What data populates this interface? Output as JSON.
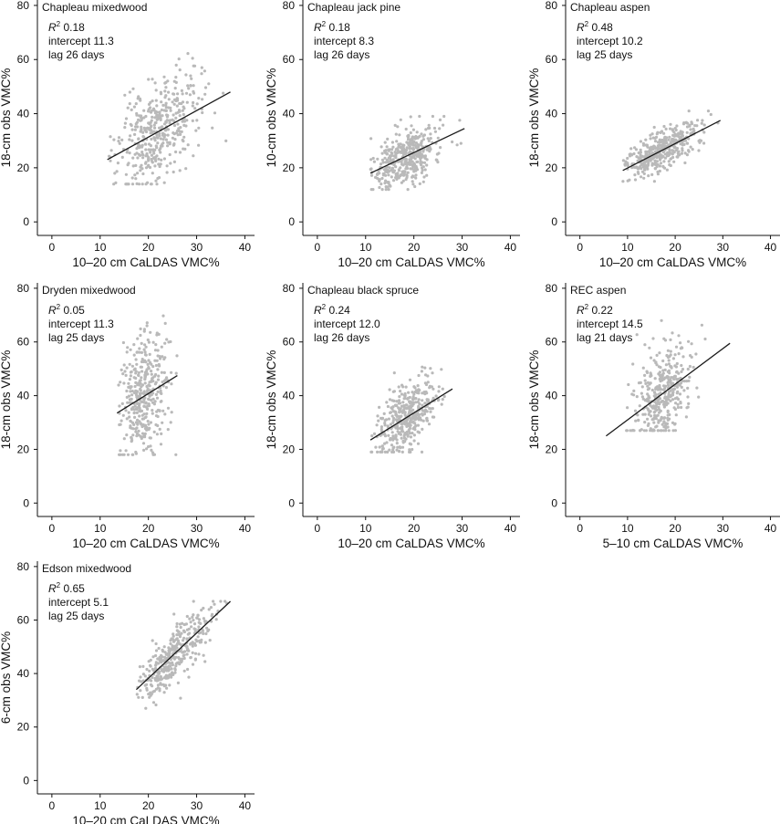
{
  "figure": {
    "colors": {
      "points": "#b9b9b9",
      "fit_line": "#1a1a1a",
      "axes": "#111111"
    }
  },
  "chart_data": [
    {
      "type": "scatter",
      "title": "Chapleau mixedwood",
      "xlabel": "10–20 cm CaLDAS VMC%",
      "ylabel": "18-cm obs VMC%",
      "xlim": [
        -3,
        42
      ],
      "ylim": [
        -5,
        82
      ],
      "xticks": [
        0,
        10,
        20,
        30,
        40
      ],
      "yticks": [
        0,
        20,
        40,
        60,
        80
      ],
      "annotation": {
        "r2_label": "R",
        "r2_sup": "2",
        "r2_value": "0.18",
        "intercept": "intercept 11.3",
        "lag": "lag 26 days"
      },
      "fit_line": [
        [
          11.5,
          23
        ],
        [
          37,
          48
        ]
      ],
      "cloud": {
        "x_min": 11.5,
        "x_max": 37,
        "x_center": 22,
        "x_sd": 4.5,
        "slope": 0.98,
        "intercept": 11.7,
        "noise_sd": 9,
        "y_min": 14,
        "y_max": 74,
        "n": 420,
        "seed": 11
      }
    },
    {
      "type": "scatter",
      "title": "Chapleau jack pine",
      "xlabel": "10–20 cm CaLDAS VMC%",
      "ylabel": "10-cm obs VMC%",
      "xlim": [
        -3,
        42
      ],
      "ylim": [
        -5,
        82
      ],
      "xticks": [
        0,
        10,
        20,
        30,
        40
      ],
      "yticks": [
        0,
        20,
        40,
        60,
        80
      ],
      "annotation": {
        "r2_label": "R",
        "r2_sup": "2",
        "r2_value": "0.18",
        "intercept": "intercept 8.3",
        "lag": "lag 26 days"
      },
      "fit_line": [
        [
          11,
          18
        ],
        [
          30.5,
          34.5
        ]
      ],
      "cloud": {
        "x_min": 11,
        "x_max": 30.5,
        "x_center": 18,
        "x_sd": 3.5,
        "slope": 0.84,
        "intercept": 8.8,
        "noise_sd": 5,
        "y_min": 12,
        "y_max": 39,
        "n": 400,
        "seed": 22
      }
    },
    {
      "type": "scatter",
      "title": "Chapleau aspen",
      "xlabel": "10–20 cm CaLDAS VMC%",
      "ylabel": "18-cm obs VMC%",
      "xlim": [
        -3,
        42
      ],
      "ylim": [
        -5,
        82
      ],
      "xticks": [
        0,
        10,
        20,
        30,
        40
      ],
      "yticks": [
        0,
        20,
        40,
        60,
        80
      ],
      "annotation": {
        "r2_label": "R",
        "r2_sup": "2",
        "r2_value": "0.48",
        "intercept": "intercept 10.2",
        "lag": "lag 25 days"
      },
      "fit_line": [
        [
          9,
          19
        ],
        [
          29.5,
          37.5
        ]
      ],
      "cloud": {
        "x_min": 9,
        "x_max": 29.5,
        "x_center": 17,
        "x_sd": 4,
        "slope": 0.9,
        "intercept": 10.9,
        "noise_sd": 3.5,
        "y_min": 15,
        "y_max": 41,
        "n": 420,
        "seed": 33
      }
    },
    {
      "type": "scatter",
      "title": "Dryden mixedwood",
      "xlabel": "10–20 cm CaLDAS VMC%",
      "ylabel": "18-cm obs VMC%",
      "xlim": [
        -3,
        42
      ],
      "ylim": [
        -5,
        82
      ],
      "xticks": [
        0,
        10,
        20,
        30,
        40
      ],
      "yticks": [
        0,
        20,
        40,
        60,
        80
      ],
      "annotation": {
        "r2_label": "R",
        "r2_sup": "2",
        "r2_value": "0.05",
        "intercept": "intercept 11.3",
        "lag": "lag 25 days"
      },
      "fit_line": [
        [
          13.5,
          33.5
        ],
        [
          26,
          47.5
        ]
      ],
      "cloud": {
        "x_min": 13.5,
        "x_max": 26,
        "x_center": 19,
        "x_sd": 2.6,
        "slope": 1.1,
        "intercept": 18.5,
        "noise_sd": 11,
        "y_min": 18,
        "y_max": 73,
        "n": 380,
        "seed": 44
      }
    },
    {
      "type": "scatter",
      "title": "Chapleau black spruce",
      "xlabel": "10–20 cm CaLDAS VMC%",
      "ylabel": "18-cm obs VMC%",
      "xlim": [
        -3,
        42
      ],
      "ylim": [
        -5,
        82
      ],
      "xticks": [
        0,
        10,
        20,
        30,
        40
      ],
      "yticks": [
        0,
        20,
        40,
        60,
        80
      ],
      "annotation": {
        "r2_label": "R",
        "r2_sup": "2",
        "r2_value": "0.24",
        "intercept": "intercept 12.0",
        "lag": "lag 26 days"
      },
      "fit_line": [
        [
          11,
          23.5
        ],
        [
          28,
          42.5
        ]
      ],
      "cloud": {
        "x_min": 11,
        "x_max": 28,
        "x_center": 18.5,
        "x_sd": 3,
        "slope": 1.12,
        "intercept": 11.4,
        "noise_sd": 6,
        "y_min": 19,
        "y_max": 58,
        "n": 400,
        "seed": 55
      }
    },
    {
      "type": "scatter",
      "title": "REC aspen",
      "xlabel": "5–10 cm CaLDAS VMC%",
      "ylabel": "18-cm obs VMC%",
      "xlim": [
        -3,
        42
      ],
      "ylim": [
        -5,
        82
      ],
      "xticks": [
        0,
        10,
        20,
        30,
        40
      ],
      "yticks": [
        0,
        20,
        40,
        60,
        80
      ],
      "annotation": {
        "r2_label": "R",
        "r2_sup": "2",
        "r2_value": "0.22",
        "intercept": "intercept 14.5",
        "lag": "lag 21 days"
      },
      "fit_line": [
        [
          5.5,
          25
        ],
        [
          31.5,
          59.5
        ]
      ],
      "cloud": {
        "x_min": 5,
        "x_max": 32,
        "x_center": 17.5,
        "x_sd": 2.8,
        "slope": 1.33,
        "intercept": 17.7,
        "noise_sd": 8,
        "y_min": 27,
        "y_max": 78,
        "n": 380,
        "seed": 66
      }
    },
    {
      "type": "scatter",
      "title": "Edson mixedwood",
      "xlabel": "10–20 cm CaLDAS VMC%",
      "ylabel": "6-cm obs VMC%",
      "xlim": [
        -3,
        42
      ],
      "ylim": [
        -5,
        82
      ],
      "xticks": [
        0,
        10,
        20,
        30,
        40
      ],
      "yticks": [
        0,
        20,
        40,
        60,
        80
      ],
      "annotation": {
        "r2_label": "R",
        "r2_sup": "2",
        "r2_value": "0.65",
        "intercept": "intercept 5.1",
        "lag": "lag 25 days"
      },
      "fit_line": [
        [
          17.5,
          34
        ],
        [
          37,
          67
        ]
      ],
      "cloud": {
        "x_min": 17.5,
        "x_max": 36.5,
        "x_center": 25,
        "x_sd": 3.8,
        "slope": 1.69,
        "intercept": 4.4,
        "noise_sd": 5,
        "y_min": 27,
        "y_max": 67,
        "n": 380,
        "seed": 77
      }
    }
  ]
}
